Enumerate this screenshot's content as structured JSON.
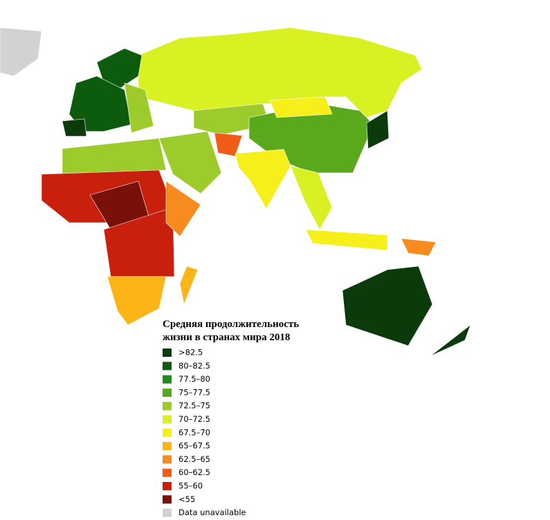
{
  "legend": {
    "title": [
      "Средняя продолжительность",
      "жизни в странах мира 2018"
    ],
    "items": [
      {
        "label": ">82.5",
        "color": "#0b3b0b"
      },
      {
        "label": "80–82.5",
        "color": "#0d5c0d"
      },
      {
        "label": "77.5–80",
        "color": "#1e8c1e"
      },
      {
        "label": "75–77.5",
        "color": "#5aa81c"
      },
      {
        "label": "72.5–75",
        "color": "#9dcb2c"
      },
      {
        "label": "70–72.5",
        "color": "#d9f123"
      },
      {
        "label": "67.5–70",
        "color": "#f7ef1a"
      },
      {
        "label": "65–67.5",
        "color": "#fbb516"
      },
      {
        "label": "62.5–65",
        "color": "#f88b1d"
      },
      {
        "label": "60–62.5",
        "color": "#f05b16"
      },
      {
        "label": "55–60",
        "color": "#c8200c"
      },
      {
        "label": "<55",
        "color": "#7a1108"
      },
      {
        "label": "Data unavailable",
        "color": "#d2d2d2"
      }
    ]
  }
}
